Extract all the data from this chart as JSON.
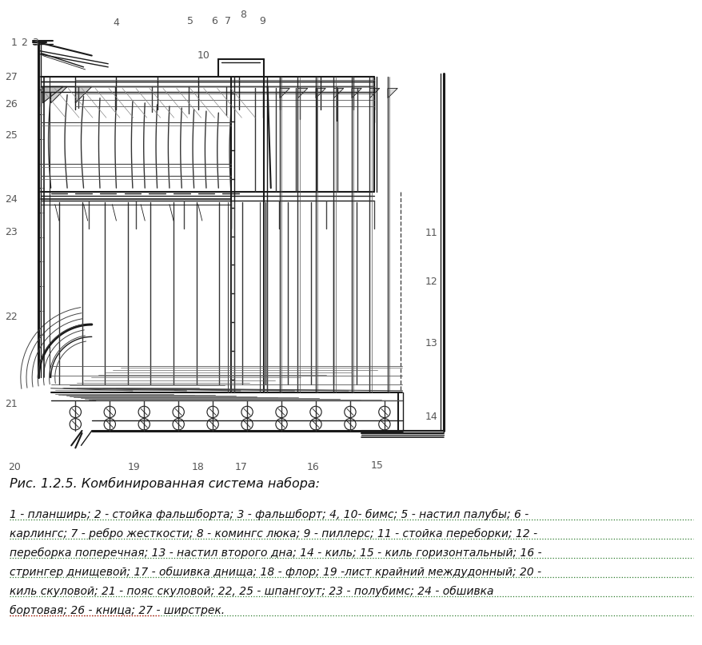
{
  "title": "Рис. 1.2.5. Комбинированная система набора:",
  "caption_lines": [
    "1 - планширь; 2 - стойка фальшборта; 3 - фальшборт; 4, 10- бимс; 5 - настил палубы; 6 -",
    "карлингс; 7 - ребро жесткости; 8 - комингс люка; 9 - пиллерс; 11 - стойка переборки; 12 -",
    "переборка поперечная; 13 - настил второго дна; 14 - киль; 15 - киль горизонтальный; 16 -",
    "стрингер днищевой; 17 - обшивка днища; 18 - флор; 19 -лист крайний междудонный; 20 -",
    "киль скуловой; 21 - пояс скуловой; 22, 25 - шпангоут; 23 - полубимс; 24 - обшивка",
    "бортовая; 26 - кница; 27 - ширстрек."
  ],
  "underline_color_green": "#2a7a2a",
  "underline_color_red": "#cc0000",
  "bg_color": "#ffffff",
  "diagram_color": "#1a1a1a",
  "label_color": "#555555",
  "fig_width": 8.79,
  "fig_height": 8.07,
  "dpi": 100,
  "labels": [
    [
      18,
      52,
      "1"
    ],
    [
      30,
      52,
      "2"
    ],
    [
      44,
      52,
      "3"
    ],
    [
      145,
      28,
      "4"
    ],
    [
      238,
      26,
      "5"
    ],
    [
      268,
      26,
      "6"
    ],
    [
      285,
      26,
      "7"
    ],
    [
      304,
      18,
      "8"
    ],
    [
      328,
      26,
      "9"
    ],
    [
      255,
      68,
      "10"
    ],
    [
      540,
      285,
      "11"
    ],
    [
      540,
      345,
      "12"
    ],
    [
      540,
      420,
      "13"
    ],
    [
      540,
      510,
      "14"
    ],
    [
      472,
      570,
      "15"
    ],
    [
      392,
      572,
      "16"
    ],
    [
      302,
      572,
      "17"
    ],
    [
      248,
      572,
      "18"
    ],
    [
      168,
      572,
      "19"
    ],
    [
      18,
      572,
      "20"
    ],
    [
      14,
      494,
      "21"
    ],
    [
      14,
      388,
      "22"
    ],
    [
      14,
      284,
      "23"
    ],
    [
      14,
      244,
      "24"
    ],
    [
      14,
      166,
      "25"
    ],
    [
      14,
      128,
      "26"
    ],
    [
      14,
      94,
      "27"
    ]
  ]
}
